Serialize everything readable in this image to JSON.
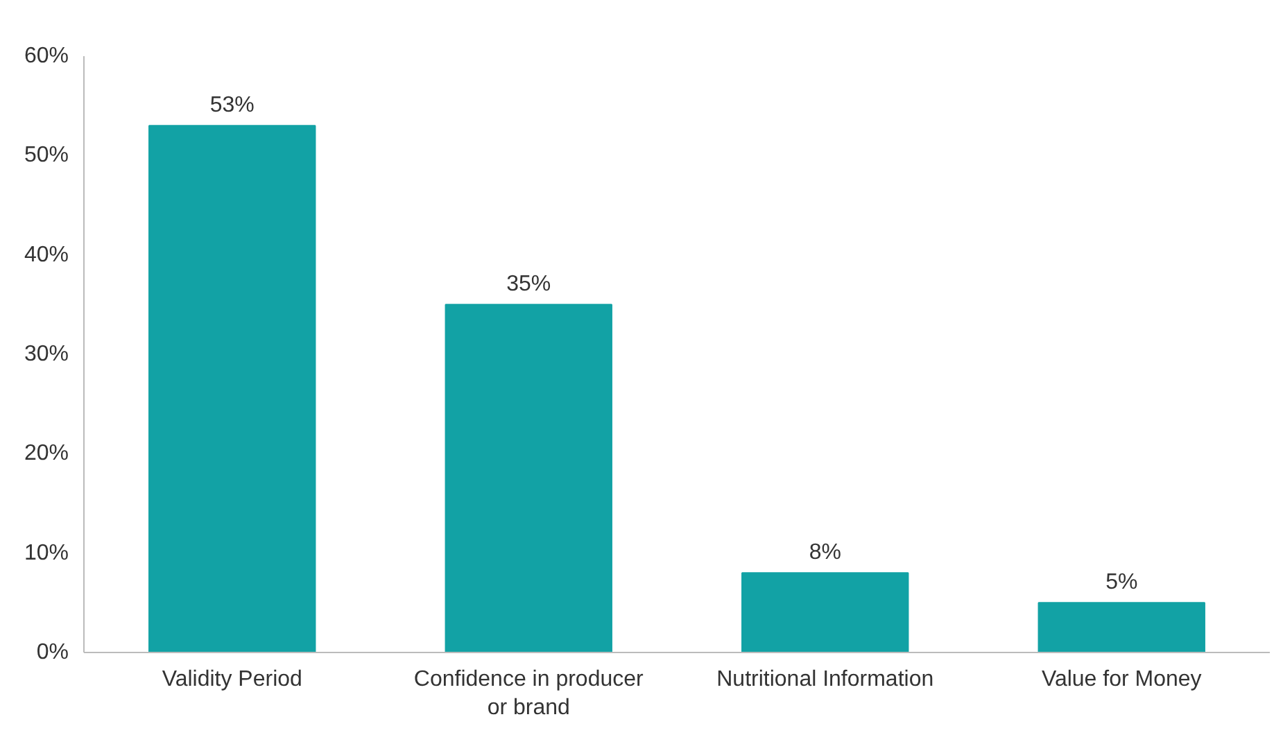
{
  "chart_data": {
    "type": "bar",
    "categories": [
      "Validity Period",
      "Confidence in producer or brand",
      "Nutritional Information",
      "Value for Money"
    ],
    "values": [
      53,
      35,
      8,
      5
    ],
    "value_labels": [
      "53%",
      "35%",
      "8%",
      "5%"
    ],
    "color": "#12a2a5",
    "ylim": [
      0,
      60
    ],
    "yticks": [
      {
        "value": 0,
        "label": "0%"
      },
      {
        "value": 10,
        "label": "10%"
      },
      {
        "value": 20,
        "label": "20%"
      },
      {
        "value": 30,
        "label": "30%"
      },
      {
        "value": 40,
        "label": "40%"
      },
      {
        "value": 50,
        "label": "50%"
      },
      {
        "value": 60,
        "label": "60%"
      }
    ],
    "grid": false
  }
}
